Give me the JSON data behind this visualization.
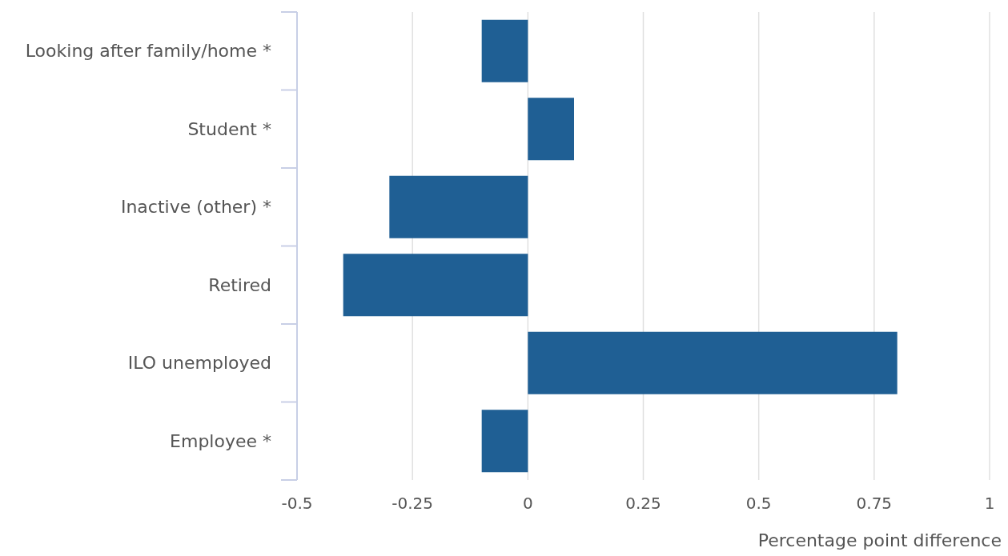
{
  "chart_data": {
    "type": "bar",
    "orientation": "horizontal",
    "categories": [
      "Looking after family/home *",
      "Student *",
      "Inactive (other) *",
      "Retired",
      "ILO unemployed",
      "Employee *"
    ],
    "values": [
      -0.1,
      0.1,
      -0.3,
      -0.4,
      0.8,
      -0.1
    ],
    "color": "#1f5f94",
    "xlim": [
      -0.5,
      1
    ],
    "xticks": [
      -0.5,
      -0.25,
      0,
      0.25,
      0.5,
      0.75,
      1
    ],
    "xlabel": "Percentage point difference",
    "grid": "x"
  }
}
